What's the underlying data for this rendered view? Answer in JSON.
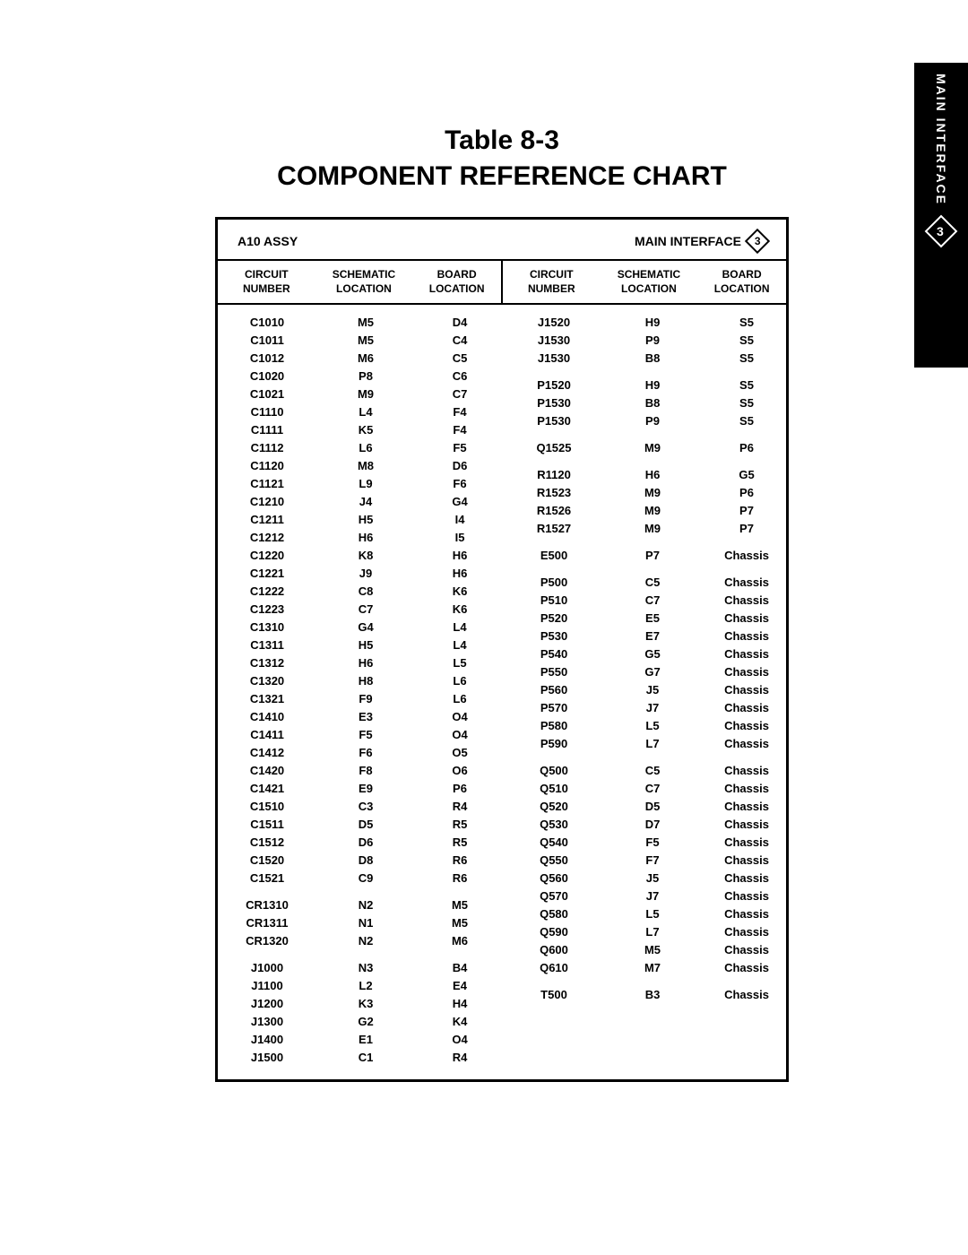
{
  "sideTab": {
    "label": "MAIN INTERFACE",
    "badge": "3"
  },
  "title": {
    "line1": "Table 8-3",
    "line2": "COMPONENT REFERENCE CHART"
  },
  "assy": {
    "left": "A10 ASSY",
    "right": "MAIN INTERFACE",
    "badge": "3"
  },
  "headers": {
    "h1a": "CIRCUIT",
    "h1b": "NUMBER",
    "h2a": "SCHEMATIC",
    "h2b": "LOCATION",
    "h3a": "BOARD",
    "h3b": "LOCATION"
  },
  "colors": {
    "bg": "#ffffff",
    "fg": "#000000"
  },
  "leftRows": [
    [
      "C1010",
      "M5",
      "D4"
    ],
    [
      "C1011",
      "M5",
      "C4"
    ],
    [
      "C1012",
      "M6",
      "C5"
    ],
    [
      "C1020",
      "P8",
      "C6"
    ],
    [
      "C1021",
      "M9",
      "C7"
    ],
    [
      "C1110",
      "L4",
      "F4"
    ],
    [
      "C1111",
      "K5",
      "F4"
    ],
    [
      "C1112",
      "L6",
      "F5"
    ],
    [
      "C1120",
      "M8",
      "D6"
    ],
    [
      "C1121",
      "L9",
      "F6"
    ],
    [
      "C1210",
      "J4",
      "G4"
    ],
    [
      "C1211",
      "H5",
      "I4"
    ],
    [
      "C1212",
      "H6",
      "I5"
    ],
    [
      "C1220",
      "K8",
      "H6"
    ],
    [
      "C1221",
      "J9",
      "H6"
    ],
    [
      "C1222",
      "C8",
      "K6"
    ],
    [
      "C1223",
      "C7",
      "K6"
    ],
    [
      "C1310",
      "G4",
      "L4"
    ],
    [
      "C1311",
      "H5",
      "L4"
    ],
    [
      "C1312",
      "H6",
      "L5"
    ],
    [
      "C1320",
      "H8",
      "L6"
    ],
    [
      "C1321",
      "F9",
      "L6"
    ],
    [
      "C1410",
      "E3",
      "O4"
    ],
    [
      "C1411",
      "F5",
      "O4"
    ],
    [
      "C1412",
      "F6",
      "O5"
    ],
    [
      "C1420",
      "F8",
      "O6"
    ],
    [
      "C1421",
      "E9",
      "P6"
    ],
    [
      "C1510",
      "C3",
      "R4"
    ],
    [
      "C1511",
      "D5",
      "R5"
    ],
    [
      "C1512",
      "D6",
      "R5"
    ],
    [
      "C1520",
      "D8",
      "R6"
    ],
    [
      "C1521",
      "C9",
      "R6"
    ],
    [
      "",
      "",
      ""
    ],
    [
      "CR1310",
      "N2",
      "M5"
    ],
    [
      "CR1311",
      "N1",
      "M5"
    ],
    [
      "CR1320",
      "N2",
      "M6"
    ],
    [
      "",
      "",
      ""
    ],
    [
      "J1000",
      "N3",
      "B4"
    ],
    [
      "J1100",
      "L2",
      "E4"
    ],
    [
      "J1200",
      "K3",
      "H4"
    ],
    [
      "J1300",
      "G2",
      "K4"
    ],
    [
      "J1400",
      "E1",
      "O4"
    ],
    [
      "J1500",
      "C1",
      "R4"
    ]
  ],
  "rightRows": [
    [
      "J1520",
      "H9",
      "S5"
    ],
    [
      "J1530",
      "P9",
      "S5"
    ],
    [
      "J1530",
      "B8",
      "S5"
    ],
    [
      "",
      "",
      ""
    ],
    [
      "P1520",
      "H9",
      "S5"
    ],
    [
      "P1530",
      "B8",
      "S5"
    ],
    [
      "P1530",
      "P9",
      "S5"
    ],
    [
      "",
      "",
      ""
    ],
    [
      "Q1525",
      "M9",
      "P6"
    ],
    [
      "",
      "",
      ""
    ],
    [
      "R1120",
      "H6",
      "G5"
    ],
    [
      "R1523",
      "M9",
      "P6"
    ],
    [
      "R1526",
      "M9",
      "P7"
    ],
    [
      "R1527",
      "M9",
      "P7"
    ],
    [
      "",
      "",
      ""
    ],
    [
      "E500",
      "P7",
      "Chassis"
    ],
    [
      "",
      "",
      ""
    ],
    [
      "P500",
      "C5",
      "Chassis"
    ],
    [
      "P510",
      "C7",
      "Chassis"
    ],
    [
      "P520",
      "E5",
      "Chassis"
    ],
    [
      "P530",
      "E7",
      "Chassis"
    ],
    [
      "P540",
      "G5",
      "Chassis"
    ],
    [
      "P550",
      "G7",
      "Chassis"
    ],
    [
      "P560",
      "J5",
      "Chassis"
    ],
    [
      "P570",
      "J7",
      "Chassis"
    ],
    [
      "P580",
      "L5",
      "Chassis"
    ],
    [
      "P590",
      "L7",
      "Chassis"
    ],
    [
      "",
      "",
      ""
    ],
    [
      "Q500",
      "C5",
      "Chassis"
    ],
    [
      "Q510",
      "C7",
      "Chassis"
    ],
    [
      "Q520",
      "D5",
      "Chassis"
    ],
    [
      "Q530",
      "D7",
      "Chassis"
    ],
    [
      "Q540",
      "F5",
      "Chassis"
    ],
    [
      "Q550",
      "F7",
      "Chassis"
    ],
    [
      "Q560",
      "J5",
      "Chassis"
    ],
    [
      "Q570",
      "J7",
      "Chassis"
    ],
    [
      "Q580",
      "L5",
      "Chassis"
    ],
    [
      "Q590",
      "L7",
      "Chassis"
    ],
    [
      "Q600",
      "M5",
      "Chassis"
    ],
    [
      "Q610",
      "M7",
      "Chassis"
    ],
    [
      "",
      "",
      ""
    ],
    [
      "T500",
      "B3",
      "Chassis"
    ]
  ]
}
